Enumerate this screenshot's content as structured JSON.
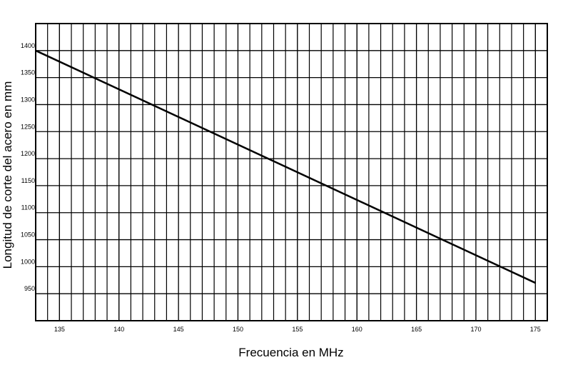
{
  "chart_data": {
    "type": "line",
    "x_label": "Frecuencia en MHz",
    "y_label": "Longitud de corte del acero en mm",
    "series": [
      {
        "color": "#000000",
        "x": [
          133,
          175
        ],
        "values": [
          1400,
          970
        ]
      }
    ],
    "xlim": [
      133,
      176
    ],
    "xticks": [
      135,
      140,
      145,
      150,
      155,
      160,
      165,
      170,
      175
    ],
    "ylim": [
      900,
      1450
    ],
    "yticks": [
      950,
      1000,
      1050,
      1100,
      1150,
      1200,
      1250,
      1300,
      1350,
      1400
    ],
    "grid": true
  }
}
